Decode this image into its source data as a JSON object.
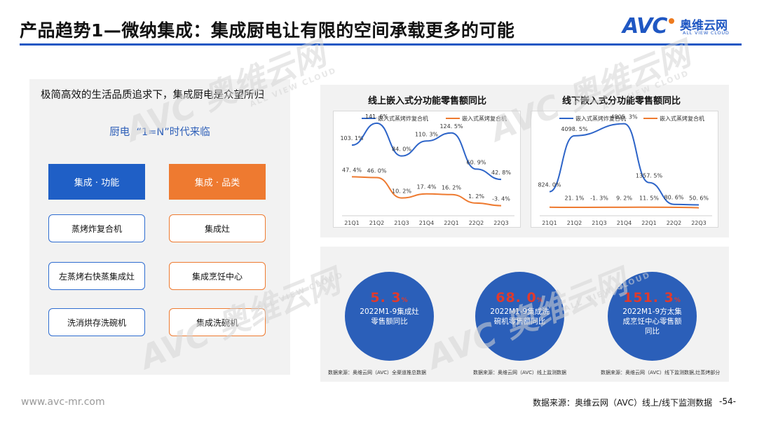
{
  "header": {
    "title": "产品趋势1—微纳集成：集成厨电让有限的空间承载更多的可能",
    "logo": {
      "brand": "AVC",
      "name_cn": "奥维云网",
      "name_en": "ALL VIEW CLOUD"
    },
    "accent_color": "#1f57c3"
  },
  "watermark": {
    "brand": "AVC",
    "name_cn": "奥维云网",
    "name_en": "ALL VIEW CLOUD"
  },
  "left_panel": {
    "heading": "极简高效的生活品质追求下，集成厨电是众望所归",
    "subheading": "厨电  “1=N”时代来临",
    "categories": [
      {
        "label": "集成 · 功能",
        "color": "#1f5fc6",
        "items": [
          "蒸烤炸复合机",
          "左蒸烤右快蒸集成灶",
          "洗消烘存洗碗机"
        ]
      },
      {
        "label": "集成 · 品类",
        "color": "#ee7a30",
        "items": [
          "集成灶",
          "集成烹饪中心",
          "集成洗碗机"
        ]
      }
    ]
  },
  "chart_data": [
    {
      "type": "line",
      "title": "线上嵌入式分功能零售额同比",
      "categories": [
        "21Q1",
        "21Q2",
        "21Q3",
        "21Q4",
        "22Q1",
        "22Q2",
        "22Q3"
      ],
      "series": [
        {
          "name": "嵌入式蒸烤炸复合机",
          "color": "#2d64c8",
          "values": [
            103.1,
            141.6,
            84.0,
            110.3,
            124.5,
            60.9,
            42.8
          ],
          "labels": [
            "103. 1%",
            "141. 6%",
            "84. 0%",
            "110. 3%",
            "124. 5%",
            "60. 9%",
            "42. 8%"
          ]
        },
        {
          "name": "嵌入式蒸烤复合机",
          "color": "#ee7a30",
          "values": [
            47.4,
            46.0,
            10.2,
            17.4,
            16.2,
            1.2,
            -3.4
          ],
          "labels": [
            "47. 4%",
            "46. 0%",
            "10. 2%",
            "17. 4%",
            "16. 2%",
            "1. 2%",
            "-3. 4%"
          ]
        }
      ],
      "legend": "top",
      "grid": false
    },
    {
      "type": "line",
      "title": "线下嵌入式分功能零售额同比",
      "categories": [
        "21Q1",
        "21Q2",
        "21Q3",
        "21Q4",
        "22Q1",
        "22Q2",
        "22Q3"
      ],
      "series": [
        {
          "name": "嵌入式蒸烤炸复合机",
          "color": "#2d64c8",
          "values": [
            824.0,
            4098.5,
            null,
            4805.3,
            1357.5,
            80.6,
            50.6
          ],
          "labels": [
            "824. 0%",
            "4098. 5%",
            "",
            "4805. 3%",
            "1357. 5%",
            "80. 6%",
            "50. 6%"
          ]
        },
        {
          "name": "嵌入式蒸烤复合机",
          "color": "#ee7a30",
          "values": [
            null,
            21.1,
            -1.3,
            9.2,
            11.5,
            null,
            null
          ],
          "labels": [
            "",
            "21. 1%",
            "-1. 3%",
            "9. 2%",
            "11. 5%",
            "",
            ""
          ]
        }
      ],
      "legend": "top",
      "grid": false
    }
  ],
  "stats": [
    {
      "value": "5. 3",
      "unit": "%",
      "label": "2022M1-9集成灶零售额同比",
      "source": "数据来源：奥维云网（AVC）全渠道推总数据"
    },
    {
      "value": "68. 0",
      "unit": "%",
      "label": "2022M1-9集成洗碗机零售额同比",
      "source": "数据来源：奥维云网（AVC）线上监测数据"
    },
    {
      "value": "151. 3",
      "unit": "%",
      "label": "2022M1-9方太集成烹饪中心零售额同比",
      "source": "数据来源：奥维云网（AVC）线下监测数据,灶蒸烤部分"
    }
  ],
  "footer": {
    "url": "www.avc-mr.com",
    "source": "数据来源：奥维云网（AVC）线上/线下监测数据",
    "page": "-54-"
  }
}
